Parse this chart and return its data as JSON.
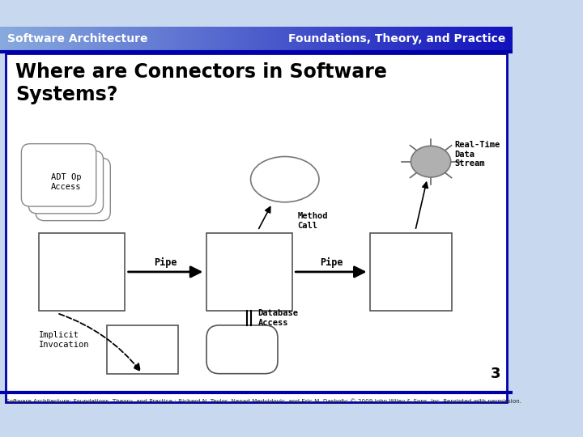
{
  "header_left_text": "Software Architecture",
  "header_right_text": "Foundations, Theory, and Practice",
  "header_text_color": "#ffffff",
  "header_bg_left": "#88aadd",
  "header_bg_right": "#1111bb",
  "slide_bg": "#c8d8ee",
  "title_line1": "Where are Connectors in Software",
  "title_line2": "Systems?",
  "title_color": "#000000",
  "footer_text": "Software Architecture: Foundations, Theory, and Practice : Richard N. Taylor, Nenad Medvidovic, and Eric M. Dashofy: © 2009 John Wiley & Sons, Inc. Reprinted with permission.",
  "page_number": "3",
  "border_color": "#0000aa",
  "box_edge": "#666666",
  "arrow_color": "#000000",
  "sun_color": "#aaaaaa",
  "adt_label": "ADT Op\nAccess",
  "pipe_label": "Pipe",
  "method_label": "Method\nCall",
  "realtime_label": "Real-Time\nData\nStream",
  "implicit_label": "Implicit\nInvocation",
  "database_label": "Database\nAccess"
}
